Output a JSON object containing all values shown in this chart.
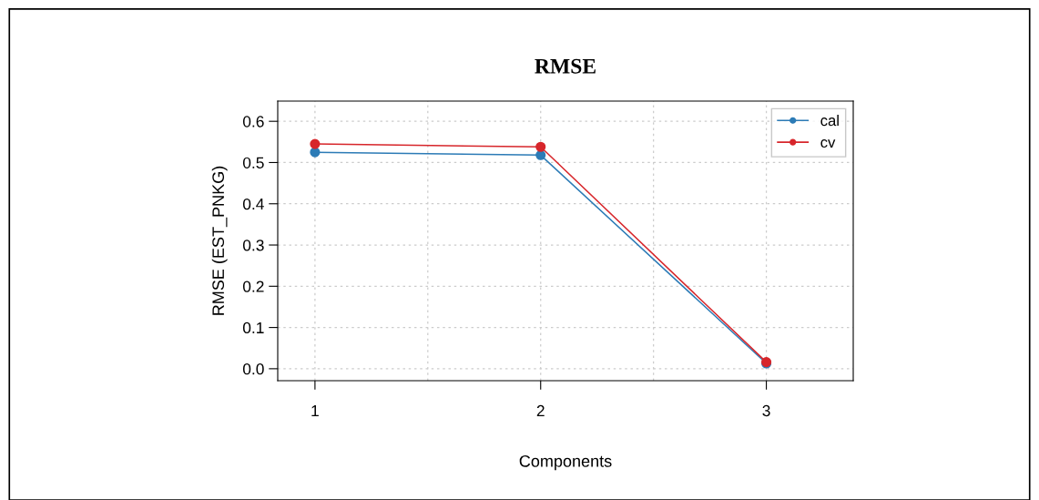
{
  "chart_data": {
    "type": "line",
    "title": "RMSE",
    "xlabel": "Components",
    "ylabel": "RMSE (EST_PNKG)",
    "x": [
      1,
      2,
      3
    ],
    "series": [
      {
        "name": "cal",
        "color": "#2c7bb6",
        "values": [
          0.525,
          0.518,
          0.013
        ]
      },
      {
        "name": "cv",
        "color": "#d7262b",
        "values": [
          0.545,
          0.538,
          0.016
        ]
      }
    ],
    "xlim": [
      0.835,
      3.385
    ],
    "xticks": [
      1,
      {
        "value": 1.5,
        "label": null
      },
      2,
      {
        "value": 2.5,
        "label": null
      },
      3
    ],
    "ylim": [
      -0.029,
      0.649
    ],
    "yticks": [
      {
        "value": 0,
        "label": "0.0"
      },
      0.1,
      0.2,
      0.3,
      0.4,
      0.5,
      0.6
    ],
    "grid": true,
    "legend": "top right",
    "marker": "circle",
    "line_style": "solid"
  }
}
